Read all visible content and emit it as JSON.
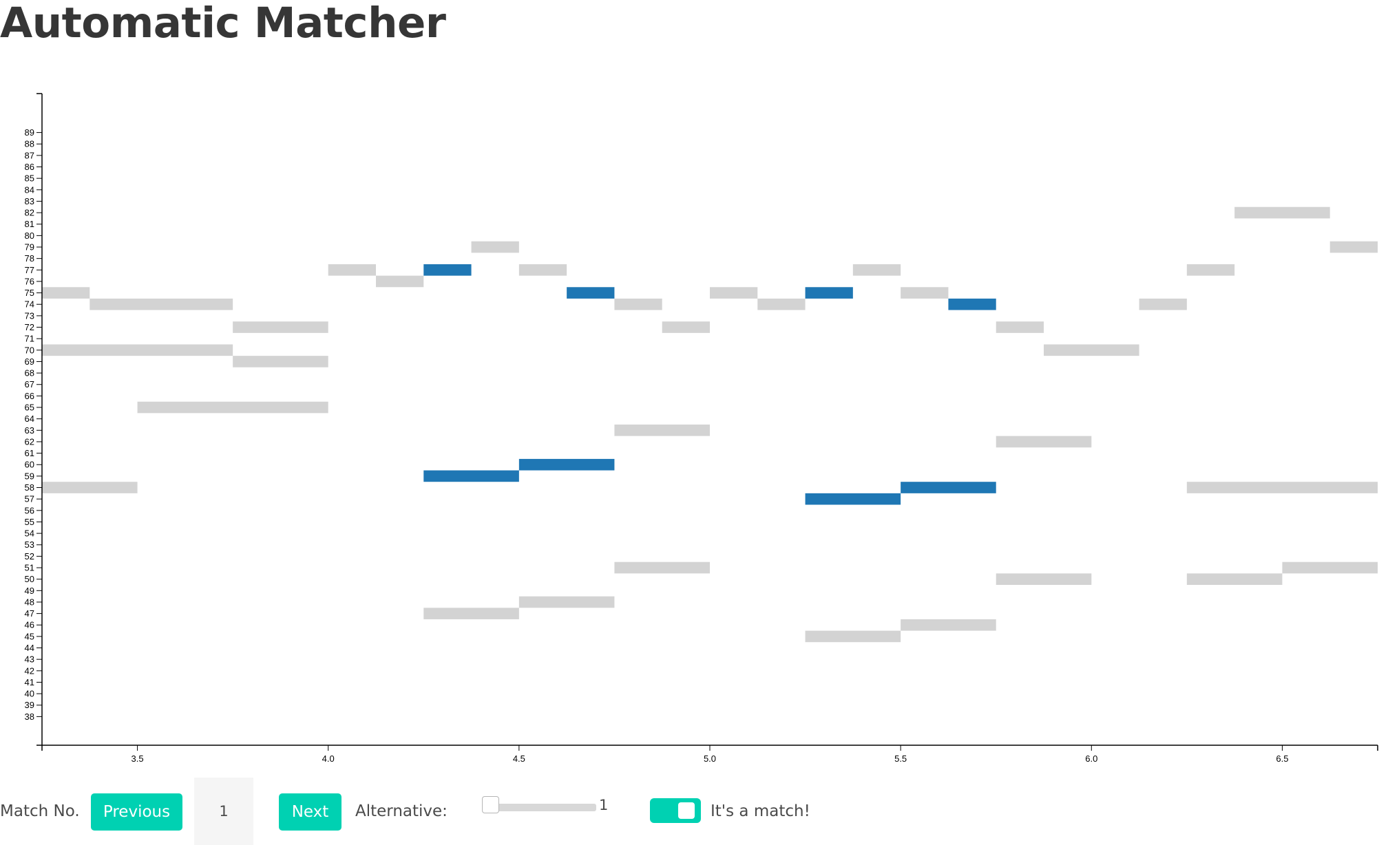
{
  "page": {
    "title": "Automatic Matcher"
  },
  "chart_data": {
    "type": "piano-roll",
    "title": "",
    "xlabel": "",
    "ylabel": "",
    "xlim": [
      3.25,
      6.75
    ],
    "ylim": [
      35.5,
      92.4
    ],
    "x_ticks": [
      "3.5",
      "4.0",
      "4.5",
      "5.0",
      "5.5",
      "6.0",
      "6.5"
    ],
    "y_ticks": [
      38,
      39,
      40,
      41,
      42,
      43,
      44,
      45,
      46,
      47,
      48,
      49,
      50,
      51,
      52,
      53,
      54,
      55,
      56,
      57,
      58,
      59,
      60,
      61,
      62,
      63,
      64,
      65,
      66,
      67,
      68,
      69,
      70,
      71,
      72,
      73,
      74,
      75,
      76,
      77,
      78,
      79,
      80,
      81,
      82,
      83,
      84,
      85,
      86,
      87,
      88,
      89
    ],
    "colors": {
      "matched": "#1f77b4",
      "unmatched": "#d3d3d3",
      "axis": "#000000"
    },
    "series": [
      {
        "name": "",
        "color": "#d3d3d3",
        "notes": [
          {
            "start": 3.25,
            "end": 3.375,
            "pitch": 75
          },
          {
            "start": 3.375,
            "end": 3.75,
            "pitch": 74
          },
          {
            "start": 3.25,
            "end": 3.75,
            "pitch": 70
          },
          {
            "start": 3.5,
            "end": 4.0,
            "pitch": 65
          },
          {
            "start": 3.25,
            "end": 3.5,
            "pitch": 58
          },
          {
            "start": 3.75,
            "end": 4.0,
            "pitch": 72
          },
          {
            "start": 3.75,
            "end": 4.0,
            "pitch": 69
          },
          {
            "start": 4.0,
            "end": 4.125,
            "pitch": 77
          },
          {
            "start": 4.125,
            "end": 4.25,
            "pitch": 76
          },
          {
            "start": 4.375,
            "end": 4.5,
            "pitch": 79
          },
          {
            "start": 4.5,
            "end": 4.625,
            "pitch": 77
          },
          {
            "start": 4.75,
            "end": 4.875,
            "pitch": 74
          },
          {
            "start": 4.875,
            "end": 5.0,
            "pitch": 72
          },
          {
            "start": 5.0,
            "end": 5.125,
            "pitch": 75
          },
          {
            "start": 5.125,
            "end": 5.25,
            "pitch": 74
          },
          {
            "start": 5.375,
            "end": 5.5,
            "pitch": 77
          },
          {
            "start": 5.5,
            "end": 5.625,
            "pitch": 75
          },
          {
            "start": 5.75,
            "end": 5.875,
            "pitch": 72
          },
          {
            "start": 5.875,
            "end": 6.125,
            "pitch": 70
          },
          {
            "start": 6.125,
            "end": 6.25,
            "pitch": 74
          },
          {
            "start": 6.25,
            "end": 6.375,
            "pitch": 77
          },
          {
            "start": 6.375,
            "end": 6.625,
            "pitch": 82
          },
          {
            "start": 6.625,
            "end": 6.75,
            "pitch": 79
          },
          {
            "start": 4.75,
            "end": 5.0,
            "pitch": 63
          },
          {
            "start": 5.75,
            "end": 6.0,
            "pitch": 62
          },
          {
            "start": 6.25,
            "end": 6.75,
            "pitch": 58
          },
          {
            "start": 4.25,
            "end": 4.5,
            "pitch": 47
          },
          {
            "start": 4.5,
            "end": 4.75,
            "pitch": 48
          },
          {
            "start": 4.75,
            "end": 5.0,
            "pitch": 51
          },
          {
            "start": 5.25,
            "end": 5.5,
            "pitch": 45
          },
          {
            "start": 5.5,
            "end": 5.75,
            "pitch": 46
          },
          {
            "start": 5.75,
            "end": 6.0,
            "pitch": 50
          },
          {
            "start": 6.25,
            "end": 6.5,
            "pitch": 50
          },
          {
            "start": 6.5,
            "end": 6.75,
            "pitch": 51
          }
        ]
      },
      {
        "name": "",
        "color": "#1f77b4",
        "notes": [
          {
            "start": 4.25,
            "end": 4.375,
            "pitch": 77
          },
          {
            "start": 4.625,
            "end": 4.75,
            "pitch": 75
          },
          {
            "start": 5.25,
            "end": 5.375,
            "pitch": 75
          },
          {
            "start": 5.625,
            "end": 5.75,
            "pitch": 74
          },
          {
            "start": 4.25,
            "end": 4.5,
            "pitch": 59
          },
          {
            "start": 4.5,
            "end": 4.75,
            "pitch": 60
          },
          {
            "start": 5.25,
            "end": 5.5,
            "pitch": 57
          },
          {
            "start": 5.5,
            "end": 5.75,
            "pitch": 58
          }
        ]
      }
    ]
  },
  "controls": {
    "match_label": "Match No.",
    "previous_label": "Previous",
    "match_number": "1",
    "next_label": "Next",
    "alternative_label": "Alternative:",
    "alternative_value": "1",
    "alternative_level": 0,
    "match_toggle_on": true,
    "match_toggle_label": "It's a match!"
  }
}
